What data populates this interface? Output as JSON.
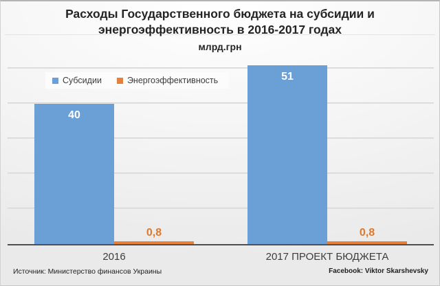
{
  "header": {
    "title": "Расходы Государственного бюджета на субсидии и энергоэффективность в 2016-2017 годах",
    "subtitle": "млрд.грн"
  },
  "chart_data": {
    "type": "bar",
    "title": "Расходы Государственного бюджета на субсидии и энергоэффективность в 2016-2017 годах",
    "unit_label": "млрд.грн",
    "categories": [
      "2016",
      "2017 ПРОЕКТ БЮДЖЕТА"
    ],
    "series": [
      {
        "name": "Субсидии",
        "values": [
          40,
          51
        ],
        "value_labels": [
          "40",
          "51"
        ],
        "color": "#6BA0D7",
        "label_color": "#ffffff",
        "label_placement": "inside-top"
      },
      {
        "name": "Энергоэффективность",
        "values": [
          0.8,
          0.8
        ],
        "value_labels": [
          "0,8",
          "0,8"
        ],
        "color": "#E5813B",
        "label_color": "#E0782C",
        "label_placement": "above"
      }
    ],
    "ylim": [
      0,
      52.9
    ],
    "gridline_values": [
      10,
      20,
      30,
      40,
      50
    ],
    "grid": true,
    "y_axis_labels_visible": false,
    "legend_position": "inside-top-left",
    "axis_color": "#4f4f4f",
    "gridline_color": "#cccccc"
  },
  "footer": {
    "source": "Источник: Министерство финансов Украины",
    "credit": "Facebook: Viktor Skarshevsky"
  }
}
